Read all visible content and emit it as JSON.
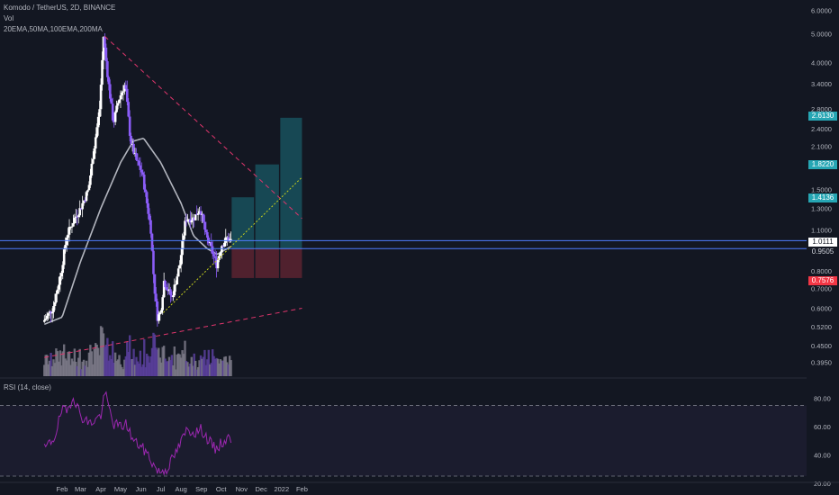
{
  "header": {
    "symbol_line": "Komodo / TetherUS, 2D, BINANCE",
    "vol_label": "Vol",
    "ma_label": "20EMA,50MA,100EMA,200MA",
    "rsi_label": "RSI (14, close)"
  },
  "colors": {
    "background": "#131722",
    "candle_up": "#ffffff",
    "candle_down": "#8a5cf6",
    "ma_line": "#b2b5be",
    "price_line": "#4f7dff",
    "trend_dashed": "#e0356c",
    "support_dotted": "#c6d01e",
    "target_zone": "#1a5a66",
    "stop_zone": "#5c2330",
    "rsi_line": "#9c27b0",
    "badge_target": "#26a6b4",
    "badge_stop": "#f23645"
  },
  "badges": {
    "target3": "2.6130",
    "target2": "1.8220",
    "target1": "1.4136",
    "current": "1.0111",
    "entry": "0.9505",
    "stop": "0.7576"
  },
  "chart_data": [
    {
      "type": "candlestick",
      "title": "Komodo / TetherUS, 2D, BINANCE",
      "x_ticks": [
        "Feb",
        "Mar",
        "Apr",
        "May",
        "Jun",
        "Jul",
        "Aug",
        "Sep",
        "Oct",
        "Nov",
        "Dec",
        "2022",
        "Feb"
      ],
      "y_scale": "log",
      "y_ticks": [
        0.395,
        0.45,
        0.52,
        0.6,
        0.7,
        0.8,
        1.1,
        1.3,
        1.5,
        2.1,
        2.4,
        2.8,
        3.4,
        4.0,
        5.0,
        6.0
      ],
      "y_range": [
        0.35,
        6.4
      ],
      "grid": false,
      "price_path": [
        [
          "Jan 5",
          0.54
        ],
        [
          "Jan 20",
          0.6
        ],
        [
          "Feb 1",
          0.78
        ],
        [
          "Feb 10",
          1.05
        ],
        [
          "Feb 22",
          1.2
        ],
        [
          "Mar 3",
          1.3
        ],
        [
          "Mar 15",
          1.5
        ],
        [
          "Mar 24",
          2.1
        ],
        [
          "Apr 1",
          2.8
        ],
        [
          "Apr 7",
          4.9
        ],
        [
          "Apr 14",
          3.5
        ],
        [
          "Apr 22",
          2.5
        ],
        [
          "Apr 30",
          3.0
        ],
        [
          "May 10",
          3.4
        ],
        [
          "May 18",
          2.2
        ],
        [
          "May 26",
          1.9
        ],
        [
          "Jun 5",
          1.7
        ],
        [
          "Jun 11",
          1.4
        ],
        [
          "Jun 18",
          1.1
        ],
        [
          "Jun 23",
          0.72
        ],
        [
          "Jun 28",
          0.56
        ],
        [
          "Jul 3",
          0.58
        ],
        [
          "Jul 8",
          0.74
        ],
        [
          "Jul 20",
          0.65
        ],
        [
          "Aug 1",
          0.84
        ],
        [
          "Aug 10",
          1.2
        ],
        [
          "Aug 22",
          1.2
        ],
        [
          "Sep 1",
          1.3
        ],
        [
          "Sep 10",
          1.05
        ],
        [
          "Sep 18",
          0.95
        ],
        [
          "Sep 26",
          0.84
        ],
        [
          "Oct 4",
          0.98
        ],
        [
          "Oct 12",
          1.03
        ],
        [
          "Oct 17",
          1.01
        ]
      ],
      "ma_curve": [
        [
          "Jan 5",
          0.53
        ],
        [
          "Feb 1",
          0.56
        ],
        [
          "Mar 1",
          0.86
        ],
        [
          "Apr 1",
          1.3
        ],
        [
          "May 1",
          1.85
        ],
        [
          "May 20",
          2.18
        ],
        [
          "Jun 5",
          2.23
        ],
        [
          "Jul 1",
          1.85
        ],
        [
          "Aug 1",
          1.35
        ],
        [
          "Aug 20",
          1.05
        ],
        [
          "Sep 10",
          0.95
        ],
        [
          "Sep 25",
          0.91
        ],
        [
          "Oct 17",
          0.97
        ]
      ],
      "horizontal_levels": [
        1.0111,
        0.9505
      ],
      "trendlines": [
        {
          "style": "dashed",
          "from": [
            "Apr 7",
            4.9
          ],
          "to": [
            "Feb 1 2022",
            1.2
          ]
        },
        {
          "style": "dashed",
          "from": [
            "Jan 5",
            0.41
          ],
          "to": [
            "Feb 1 2022",
            0.6
          ]
        },
        {
          "style": "dotted",
          "from": [
            "Jul 5",
            0.58
          ],
          "to": [
            "Feb 1 2022",
            1.65
          ]
        }
      ],
      "target_zones": [
        {
          "from": "Oct 17",
          "to": "Nov 20",
          "top": 1.4136
        },
        {
          "from": "Nov 22",
          "to": "Dec 28",
          "top": 1.822
        },
        {
          "from": "Dec 30",
          "to": "Feb 1 2022",
          "top": 2.613
        }
      ],
      "stop_zone": {
        "from": "Oct 17",
        "to": "Feb 1 2022",
        "top": 0.9505,
        "bottom": 0.7576
      }
    },
    {
      "type": "line",
      "title": "RSI (14, close)",
      "y_ticks": [
        20.0,
        40.0,
        60.0,
        80.0
      ],
      "y_range": [
        18,
        88
      ],
      "bands": [
        75,
        25
      ],
      "series": [
        {
          "values": [
            [
              "Jan 5",
              44
            ],
            [
              "Jan 20",
              52
            ],
            [
              "Feb 1",
              72
            ],
            [
              "Feb 8",
              70
            ],
            [
              "Feb 18",
              82
            ],
            [
              "Mar 1",
              68
            ],
            [
              "Mar 15",
              62
            ],
            [
              "Apr 1",
              68
            ],
            [
              "Apr 7",
              84
            ],
            [
              "Apr 20",
              62
            ],
            [
              "May 1",
              60
            ],
            [
              "May 10",
              62
            ],
            [
              "May 20",
              50
            ],
            [
              "Jun 1",
              46
            ],
            [
              "Jun 12",
              40
            ],
            [
              "Jun 20",
              33
            ],
            [
              "Jun 28",
              28
            ],
            [
              "Jul 10",
              30
            ],
            [
              "Jul 25",
              42
            ],
            [
              "Aug 10",
              58
            ],
            [
              "Aug 22",
              56
            ],
            [
              "Sep 1",
              58
            ],
            [
              "Sep 12",
              50
            ],
            [
              "Sep 22",
              44
            ],
            [
              "Oct 1",
              48
            ],
            [
              "Oct 12",
              52
            ],
            [
              "Oct 17",
              50
            ]
          ]
        }
      ]
    }
  ]
}
